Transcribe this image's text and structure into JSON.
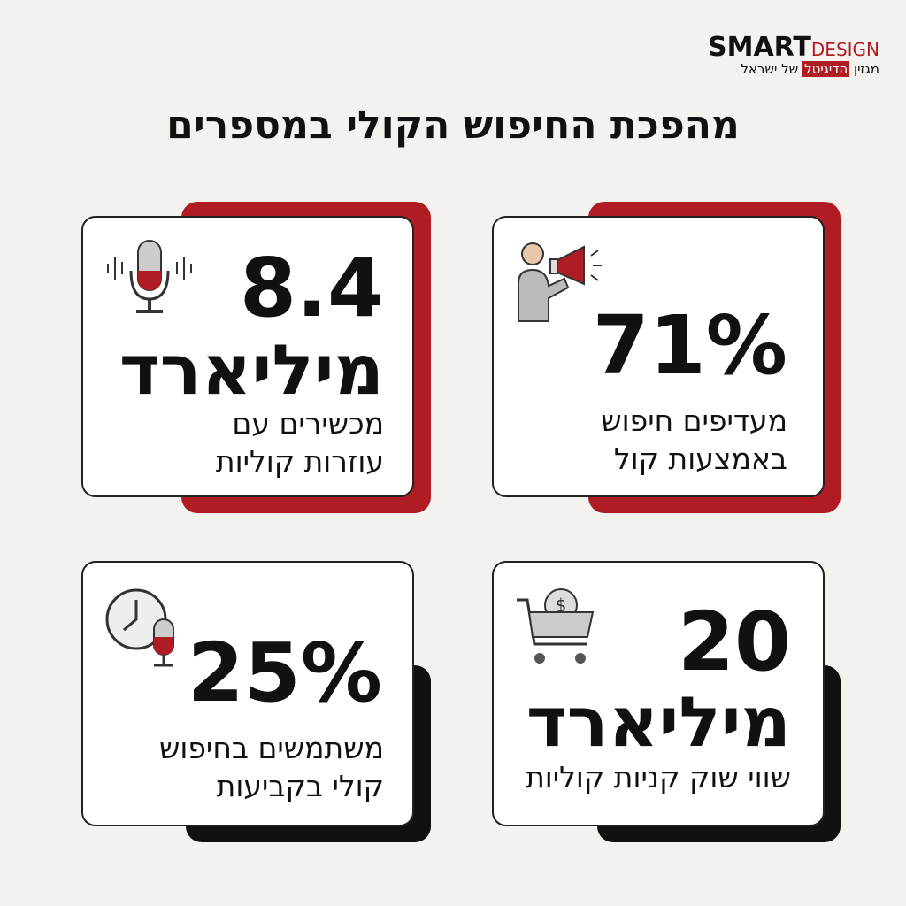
{
  "header": {
    "brand": "SMART",
    "brand_suffix": "DESIGN",
    "tagline_start": "מגזין",
    "tagline_highlight": "הדיגיטל",
    "tagline_end": "של ישראל",
    "title": "מהפכת החיפוש הקולי במספרים"
  },
  "cards": [
    {
      "number": "71%",
      "lines": [
        "מעדיפים חיפוש",
        "באמצעות קול"
      ]
    },
    {
      "number": "8.4",
      "unit": "מיליארד",
      "lines": [
        "מכשירים עם",
        "עוזרות קוליות"
      ]
    },
    {
      "number": "20",
      "unit": "מיליארד",
      "lines": [
        "שווי שוק קניות קוליות"
      ]
    },
    {
      "number": "25%",
      "lines": [
        "משתמשים בחיפוש",
        "קולי בקביעות"
      ]
    }
  ]
}
